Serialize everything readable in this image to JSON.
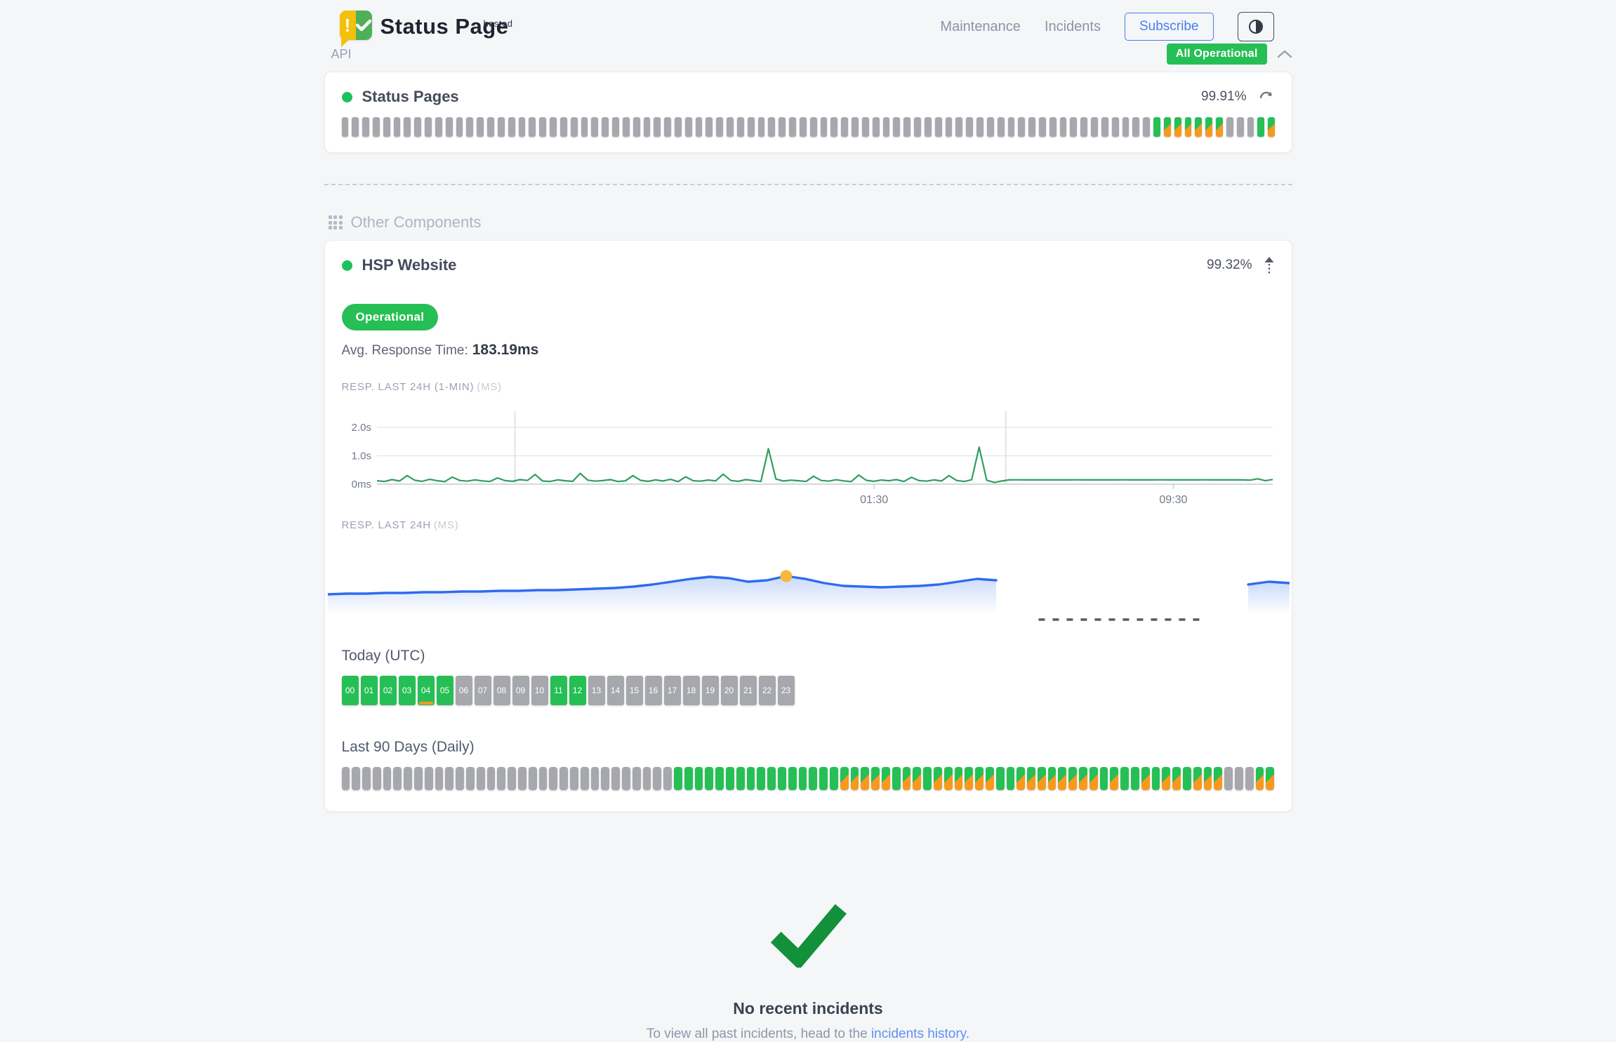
{
  "header": {
    "logo": {
      "brand": "Status Page",
      "superscript": "hosted",
      "icon_exclaim": "!"
    },
    "nav": [
      {
        "label": "Maintenance"
      },
      {
        "label": "Incidents"
      }
    ],
    "subscribe_label": "Subscribe",
    "status_badge": "All Operational"
  },
  "api_section": {
    "label": "API",
    "component": {
      "name": "Status Pages",
      "uptime": "99.91%",
      "bars": {
        "gray_lead": 78,
        "tail": "uddddddgggud"
      }
    }
  },
  "other_components": {
    "title": "Other Components",
    "component": {
      "name": "HSP Website",
      "uptime": "99.32%",
      "status": "Operational",
      "avg_label": "Avg. Response Time:",
      "avg_value": "183.19ms",
      "chart1_label": "RESP. LAST 24H (1-MIN)",
      "chart1_unit": "(MS)",
      "chart2_label": "RESP. LAST 24H",
      "chart2_unit": "(MS)",
      "today_title": "Today (UTC)",
      "hours": {
        "labels": [
          "00",
          "01",
          "02",
          "03",
          "04",
          "05",
          "06",
          "07",
          "08",
          "09",
          "10",
          "11",
          "12",
          "13",
          "14",
          "15",
          "16",
          "17",
          "18",
          "19",
          "20",
          "21",
          "22",
          "23"
        ],
        "states": "uuuuuuggggguuggggggggggg",
        "marker_index": 4
      },
      "last90_title": "Last 90 Days (Daily)",
      "last90_bars": {
        "gray_lead": 32,
        "tail": "uuuuuuuuuuuuuuuuddddduddudddddduudddddddduduududdudddgggdd"
      }
    }
  },
  "chart_data": [
    {
      "type": "line",
      "title": "RESP. LAST 24H (1-MIN) (MS)",
      "line_color": "#2f9e5f",
      "ylim": [
        0,
        2300
      ],
      "ytick_values": [
        0,
        1000,
        2000
      ],
      "ytick_labels": [
        "0ms",
        "1.0s",
        "2.0s"
      ],
      "x_labels": [
        {
          "label": "01:30",
          "pos": 0.555
        },
        {
          "label": "09:30",
          "pos": 0.889
        }
      ],
      "vgrid_pos": [
        0.154,
        0.702
      ],
      "values": [
        120,
        95,
        160,
        110,
        300,
        140,
        100,
        170,
        120,
        90,
        250,
        130,
        105,
        150,
        115,
        95,
        220,
        125,
        100,
        160,
        130,
        340,
        110,
        95,
        150,
        120,
        100,
        380,
        140,
        105,
        125,
        160,
        95,
        115,
        300,
        135,
        100,
        150,
        110,
        170,
        90,
        260,
        120,
        105,
        145,
        115,
        350,
        130,
        100,
        160,
        125,
        95,
        1250,
        180,
        110,
        140,
        120,
        95,
        280,
        130,
        105,
        155,
        115,
        90,
        320,
        135,
        100,
        145,
        120,
        160,
        95,
        240,
        125,
        105,
        150,
        110,
        300,
        130,
        95,
        155,
        1300,
        140,
        60,
        110,
        150,
        152,
        150,
        151,
        150,
        150,
        151,
        150,
        150,
        152,
        150,
        150,
        151,
        150,
        150,
        152,
        150,
        151,
        150,
        150,
        152,
        150,
        150,
        151,
        150,
        150,
        152,
        150,
        150,
        151,
        150,
        150,
        140,
        190,
        120,
        165
      ]
    },
    {
      "type": "area",
      "title": "RESP. LAST 24H (MS)",
      "line_color": "#2e6bf0",
      "dot_color": "#f5b83a",
      "segments": {
        "main": {
          "start": 0.0,
          "end": 0.695,
          "dot_index": 24,
          "values": [
            30,
            31,
            31,
            32,
            32,
            33,
            33,
            34,
            34,
            35,
            35,
            36,
            36,
            37,
            38,
            39,
            41,
            44,
            48,
            52,
            55,
            53,
            48,
            50,
            56,
            52,
            46,
            42,
            41,
            40,
            41,
            42,
            44,
            48,
            52,
            50
          ]
        },
        "gap_dash": {
          "start": 0.739,
          "end": 0.91
        },
        "stub": {
          "start": 0.957,
          "end": 1.0,
          "values": [
            44,
            46,
            48,
            47,
            46
          ]
        }
      }
    }
  ],
  "footer": {
    "no_incidents": "No recent incidents",
    "history_prefix": "To view all past incidents, head to the ",
    "history_link": "incidents history."
  },
  "colors": {
    "green": "#26bf55",
    "orange": "#f8981d",
    "gray_bar": "#a6a8ad",
    "chart_green": "#2f9e5f",
    "blue": "#2e6bf0",
    "accent_blue": "#4a7df0",
    "yellow_dot": "#f5b83a",
    "check_green": "#13903a",
    "background": "#f4f6f8"
  }
}
